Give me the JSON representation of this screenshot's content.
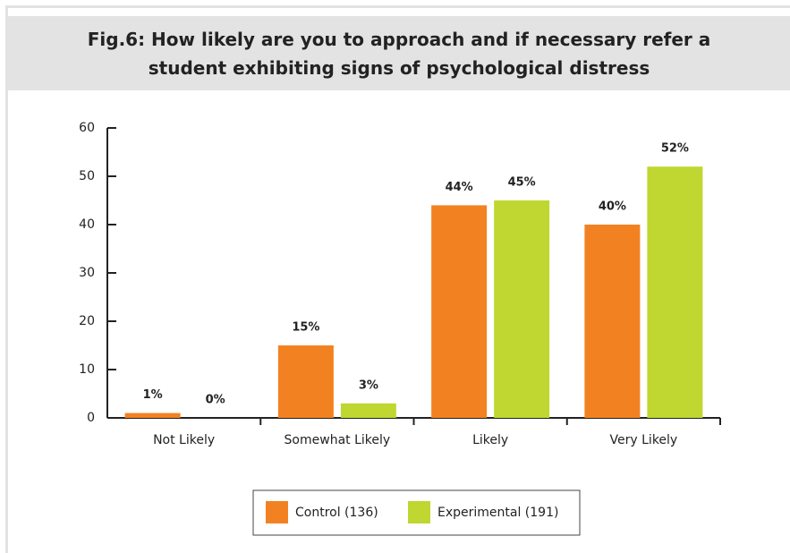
{
  "chart_data": {
    "type": "bar",
    "title": "Fig.6: How likely are you to approach and if necessary refer a student exhibiting signs of psychological distress",
    "categories": [
      "Not Likely",
      "Somewhat Likely",
      "Likely",
      "Very Likely"
    ],
    "series": [
      {
        "name": "Control (136)",
        "color": "#f28221",
        "values": [
          1,
          15,
          44,
          40
        ],
        "value_labels": [
          "1%",
          "15%",
          "44%",
          "40%"
        ]
      },
      {
        "name": "Experimental (191)",
        "color": "#bfd730",
        "values": [
          0,
          3,
          45,
          52
        ],
        "value_labels": [
          "0%",
          "3%",
          "45%",
          "52%"
        ]
      }
    ],
    "ylim": [
      0,
      60
    ],
    "yticks": [
      0,
      10,
      20,
      30,
      40,
      50,
      60
    ],
    "legend": "bottom"
  }
}
